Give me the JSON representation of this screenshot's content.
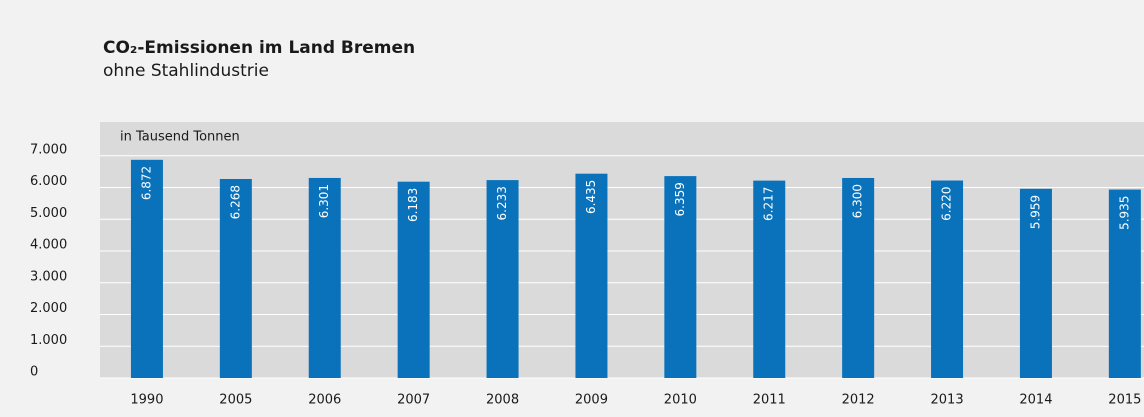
{
  "chart_data": {
    "type": "bar",
    "title": "CO₂-Emissionen im Land Bremen",
    "subtitle": "ohne Stahlindustrie",
    "y_label": "in Tausend Tonnen",
    "categories": [
      "1990",
      "2005",
      "2006",
      "2007",
      "2008",
      "2009",
      "2010",
      "2011",
      "2012",
      "2013",
      "2014",
      "2015"
    ],
    "values": [
      6872,
      6268,
      6301,
      6183,
      6233,
      6435,
      6359,
      6217,
      6300,
      6220,
      5959,
      5935
    ],
    "value_labels": [
      "6.872",
      "6.268",
      "6.301",
      "6.183",
      "6.233",
      "6.435",
      "6.359",
      "6.217",
      "6.300",
      "6.220",
      "5.959",
      "5.935"
    ],
    "color": "#0a72bb",
    "ylim": [
      0,
      8000
    ],
    "yticks": [
      {
        "value": 0,
        "label": "0"
      },
      {
        "value": 1000,
        "label": "1.000"
      },
      {
        "value": 2000,
        "label": "2.000"
      },
      {
        "value": 3000,
        "label": "3.000"
      },
      {
        "value": 4000,
        "label": "4.000"
      },
      {
        "value": 5000,
        "label": "5.000"
      },
      {
        "value": 6000,
        "label": "6.000"
      },
      {
        "value": 7000,
        "label": "7.000"
      }
    ],
    "grid": true
  }
}
